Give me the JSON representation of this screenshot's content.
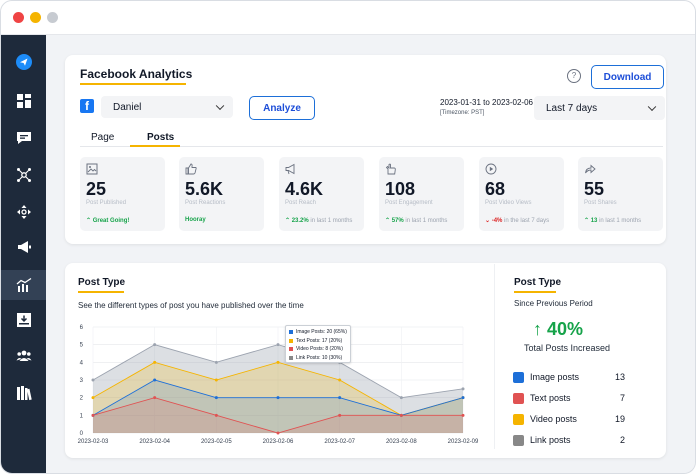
{
  "header": {
    "title": "Facebook Analytics",
    "help": "?",
    "download": "Download"
  },
  "controls": {
    "account": "Daniel",
    "analyze": "Analyze",
    "date_range": "2023-01-31 to 2023-02-06",
    "timezone": "[Timezone: PST]",
    "period": "Last 7 days"
  },
  "tabs": [
    {
      "label": "Page"
    },
    {
      "label": "Posts"
    }
  ],
  "stats": [
    {
      "value": "25",
      "label": "Post Published",
      "sub_prefix": "",
      "sub_text": "Great Going!",
      "trend": "up"
    },
    {
      "value": "5.6K",
      "label": "Post Reactions",
      "sub_prefix": "",
      "sub_text": "Hooray",
      "trend": "none"
    },
    {
      "value": "4.6K",
      "label": "Post Reach",
      "sub_prefix": "23.2%",
      "sub_text": "in last 1 months",
      "trend": "up"
    },
    {
      "value": "108",
      "label": "Post Engagement",
      "sub_prefix": "57%",
      "sub_text": "in last 1 months",
      "trend": "up"
    },
    {
      "value": "68",
      "label": "Post Video Views",
      "sub_prefix": "-4%",
      "sub_text": "in the last 7 days",
      "trend": "down"
    },
    {
      "value": "55",
      "label": "Post Shares",
      "sub_prefix": "13",
      "sub_text": "in last 1 months",
      "trend": "up"
    }
  ],
  "post_type": {
    "title": "Post Type",
    "description": "See the different types of post you have published over the time"
  },
  "tooltip": {
    "lines": [
      "Image Posts: 20 (65%)",
      "Text Posts: 17 (20%)",
      "Video Posts: 8 (20%)",
      "Link Posts: 10 (30%)"
    ]
  },
  "summary": {
    "title": "Post Type",
    "period": "Since Previous Period",
    "change": "40%",
    "caption": "Total Posts Increased",
    "items": [
      {
        "label": "Image posts",
        "count": "13",
        "color": "#1d6fd8"
      },
      {
        "label": "Text posts",
        "count": "7",
        "color": "#e05252"
      },
      {
        "label": "Video posts",
        "count": "19",
        "color": "#f5b400"
      },
      {
        "label": "Link posts",
        "count": "2",
        "color": "#888888"
      }
    ]
  },
  "chart_data": {
    "type": "area",
    "categories": [
      "2023-02-03",
      "2023-02-04",
      "2023-02-05",
      "2023-02-06",
      "2023-02-07",
      "2023-02-08",
      "2023-02-09"
    ],
    "ylim": [
      0,
      6
    ],
    "yticks": [
      0,
      1,
      2,
      3,
      4,
      5,
      6
    ],
    "series": [
      {
        "name": "Link Posts",
        "color": "#9ca3af",
        "values": [
          3,
          5,
          4,
          5,
          4,
          2,
          2.5
        ]
      },
      {
        "name": "Video Posts",
        "color": "#f5b400",
        "values": [
          2,
          4,
          3,
          4,
          3,
          1,
          2
        ]
      },
      {
        "name": "Image Posts",
        "color": "#1d6fd8",
        "values": [
          1,
          3,
          2,
          2,
          2,
          1,
          2
        ]
      },
      {
        "name": "Text Posts",
        "color": "#e05252",
        "values": [
          1,
          2,
          1,
          0,
          1,
          1,
          1
        ]
      }
    ],
    "grid": true
  }
}
